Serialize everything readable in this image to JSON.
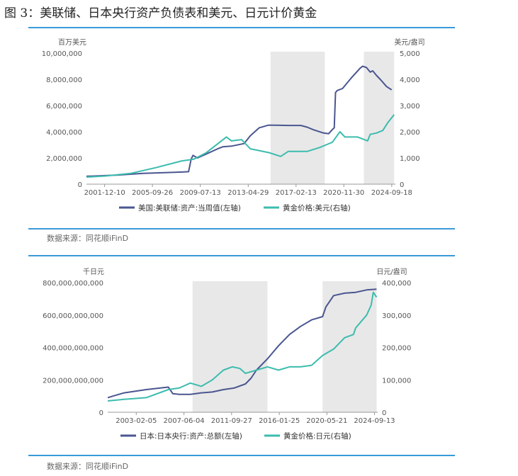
{
  "figure_title": "图 3：美联储、日本央行资产负债表和美元、日元计价黄金",
  "source_1": "数据来源：同花顺iFinD",
  "source_2": "数据来源：同花顺iFinD",
  "colors": {
    "left_series": "#4a5690",
    "right_series": "#3dbcae",
    "shade": "#e8e8e8",
    "rule": "#3a9ad9"
  },
  "chart_data": [
    {
      "type": "line",
      "left_unit": "百万美元",
      "right_unit": "美元/盎司",
      "left_ticks": [
        0,
        2000000,
        4000000,
        6000000,
        8000000,
        10000000
      ],
      "left_tick_labels": [
        "0",
        "2,000,000",
        "4,000,000",
        "6,000,000",
        "8,000,000",
        "10,000,000"
      ],
      "right_ticks": [
        0,
        1000,
        2000,
        3000,
        4000,
        5000
      ],
      "right_tick_labels": [
        "0",
        "1,000",
        "2,000",
        "3,000",
        "4,000",
        "5,000"
      ],
      "ylim_left": [
        0,
        10000000
      ],
      "ylim_right": [
        0,
        5000
      ],
      "xlim": [
        2000.5,
        2025.0
      ],
      "x_ticks": [
        2001.94,
        2005.73,
        2009.53,
        2013.33,
        2017.12,
        2020.91,
        2024.71
      ],
      "x_tick_labels": [
        "2001-12-10",
        "2005-09-26",
        "2009-07-13",
        "2013-04-29",
        "2017-02-13",
        "2020-11-30",
        "2024-09-18"
      ],
      "shaded_periods": [
        [
          2015.1,
          2019.4
        ],
        [
          2022.5,
          2024.9
        ]
      ],
      "series": [
        {
          "name": "美国:美联储:资产:当周值(左轴)",
          "axis": "left",
          "x": [
            2000.5,
            2003,
            2005,
            2007.5,
            2008.6,
            2008.8,
            2008.95,
            2009.3,
            2010,
            2010.9,
            2011.3,
            2012,
            2013,
            2013.5,
            2014.2,
            2014.9,
            2015.5,
            2016.5,
            2017.5,
            2018,
            2018.5,
            2019.3,
            2019.7,
            2020.0,
            2020.15,
            2020.25,
            2020.4,
            2020.8,
            2021.5,
            2022.2,
            2022.4,
            2022.7,
            2023.0,
            2023.2,
            2023.5,
            2023.8,
            2024.3,
            2024.7
          ],
          "y": [
            600000,
            700000,
            820000,
            900000,
            950000,
            1900000,
            2200000,
            2000000,
            2300000,
            2700000,
            2850000,
            2900000,
            3100000,
            3700000,
            4300000,
            4500000,
            4500000,
            4480000,
            4480000,
            4350000,
            4150000,
            3900000,
            3850000,
            4170000,
            4300000,
            7000000,
            7150000,
            7300000,
            8100000,
            8850000,
            9000000,
            8900000,
            8550000,
            8650000,
            8300000,
            8000000,
            7450000,
            7200000
          ]
        },
        {
          "name": "黄金价格:美元(右轴)",
          "axis": "right",
          "x": [
            2000.5,
            2002,
            2004,
            2006,
            2008,
            2009,
            2010,
            2011.6,
            2012,
            2012.8,
            2013.5,
            2014,
            2015,
            2015.9,
            2016.5,
            2017,
            2018,
            2019,
            2019.5,
            2020,
            2020.6,
            2021,
            2022,
            2022.8,
            2023,
            2023.5,
            2024,
            2024.4,
            2024.9
          ],
          "y": [
            270,
            310,
            410,
            630,
            880,
            950,
            1200,
            1800,
            1650,
            1700,
            1350,
            1300,
            1200,
            1060,
            1250,
            1250,
            1250,
            1400,
            1500,
            1600,
            2000,
            1800,
            1800,
            1650,
            1900,
            1950,
            2050,
            2350,
            2650
          ]
        }
      ]
    },
    {
      "type": "line",
      "left_unit": "千日元",
      "right_unit": "日元/盎司",
      "left_ticks": [
        0,
        200000000000,
        400000000000,
        600000000000,
        800000000000
      ],
      "left_tick_labels": [
        "0",
        "200,000,000,000",
        "400,000,000,000",
        "600,000,000,000",
        "800,000,000,000"
      ],
      "right_ticks": [
        0,
        100000,
        200000,
        300000,
        400000
      ],
      "right_tick_labels": [
        "0",
        "100,000",
        "200,000",
        "300,000",
        "400,000"
      ],
      "ylim_left": [
        0,
        800000000000
      ],
      "ylim_right": [
        0,
        400000
      ],
      "xlim": [
        2000.5,
        2025.0
      ],
      "x_ticks": [
        2003.09,
        2007.42,
        2011.74,
        2016.07,
        2020.39,
        2024.71
      ],
      "x_tick_labels": [
        "2003-02-05",
        "2007-06-04",
        "2011-09-27",
        "2016-01-25",
        "2020-05-21",
        "2024-09-13"
      ],
      "shaded_periods": [
        [
          2008.2,
          2015.0
        ],
        [
          2020.0,
          2024.9
        ]
      ],
      "series": [
        {
          "name": "日本:日本央行:资产:总额(左轴)",
          "axis": "left",
          "x": [
            2000.5,
            2001,
            2002,
            2004,
            2006,
            2006.4,
            2007,
            2008,
            2009,
            2010,
            2011,
            2012,
            2013,
            2013.5,
            2014,
            2015,
            2016,
            2017,
            2018,
            2019,
            2020,
            2020.3,
            2021,
            2022,
            2023,
            2024,
            2024.9
          ],
          "y": [
            90000000000,
            100000000000,
            120000000000,
            140000000000,
            155000000000,
            115000000000,
            110000000000,
            110000000000,
            120000000000,
            125000000000,
            140000000000,
            150000000000,
            175000000000,
            210000000000,
            260000000000,
            330000000000,
            410000000000,
            480000000000,
            530000000000,
            570000000000,
            590000000000,
            650000000000,
            720000000000,
            735000000000,
            740000000000,
            755000000000,
            760000000000
          ]
        },
        {
          "name": "黄金价格:日元(右轴)",
          "axis": "right",
          "x": [
            2000.5,
            2002,
            2004,
            2006,
            2007,
            2008,
            2009,
            2010,
            2011,
            2011.8,
            2012.5,
            2013,
            2014,
            2015,
            2016,
            2017,
            2018,
            2019,
            2020,
            2021,
            2022,
            2022.8,
            2023,
            2024,
            2024.4,
            2024.6,
            2024.9
          ],
          "y": [
            35000,
            40000,
            45000,
            70000,
            75000,
            90000,
            80000,
            100000,
            130000,
            140000,
            135000,
            120000,
            130000,
            140000,
            130000,
            140000,
            140000,
            145000,
            175000,
            195000,
            230000,
            240000,
            260000,
            300000,
            330000,
            370000,
            355000
          ]
        }
      ]
    }
  ]
}
